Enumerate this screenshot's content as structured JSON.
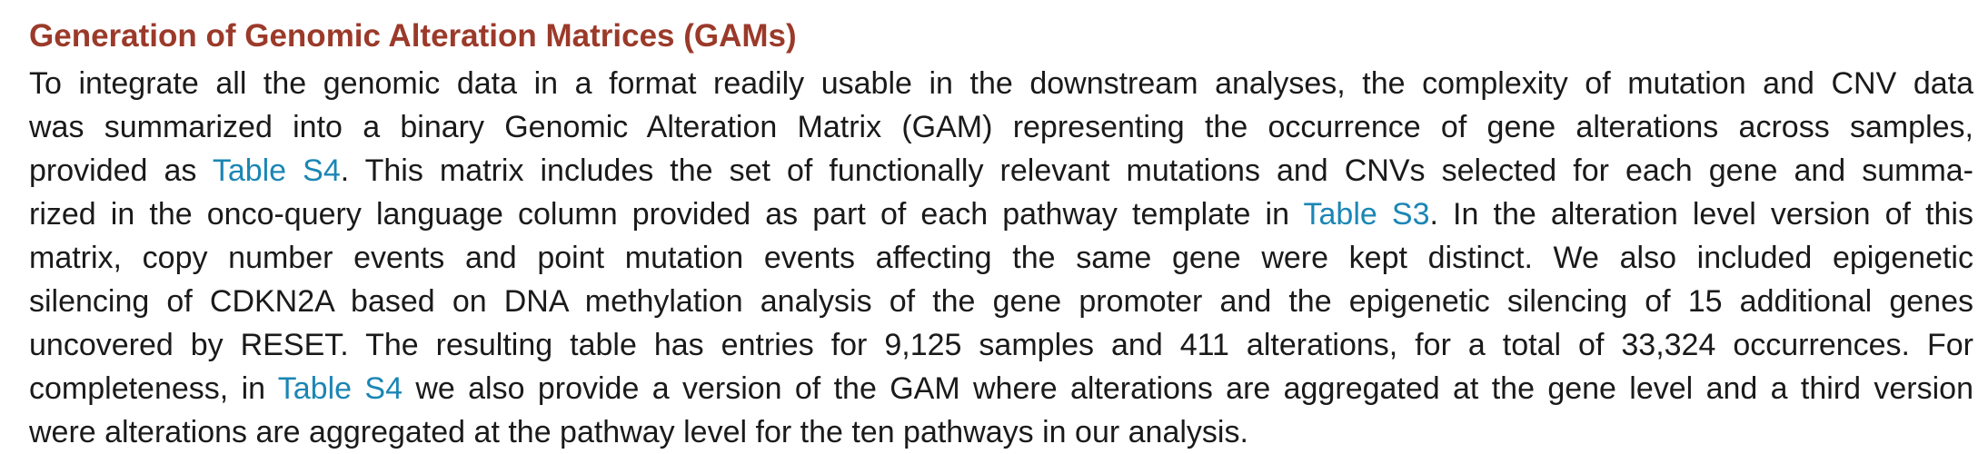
{
  "section": {
    "heading": "Generation of Genomic Alteration Matrices (GAMs)",
    "lines": [
      {
        "segments": [
          "To integrate all the genomic data in a format readily usable in the downstream analyses, the complexity of mutation and CNV data"
        ]
      },
      {
        "segments": [
          "was summarized into a binary Genomic Alteration Matrix (GAM) representing the occurrence of gene alterations across samples,"
        ]
      },
      {
        "segments": [
          "provided as ",
          "Table S4",
          ". This matrix includes the set of functionally relevant mutations and CNVs selected for each gene and summa-"
        ]
      },
      {
        "segments": [
          "rized in the onco-query language column provided as part of each pathway template in ",
          "Table S3",
          ". In the alteration level version of this"
        ]
      },
      {
        "segments": [
          "matrix, copy number events and point mutation events affecting the same gene were kept distinct. We also included epigenetic"
        ]
      },
      {
        "segments": [
          "silencing of CDKN2A based on DNA methylation analysis of the gene promoter and the epigenetic silencing of 15 additional genes"
        ]
      },
      {
        "segments": [
          "uncovered by RESET. The resulting table has entries for 9,125 samples and 411 alterations, for a total of 33,324 occurrences. For"
        ]
      },
      {
        "segments": [
          "completeness, in ",
          "Table S4",
          " we also provide a version of the GAM where alterations are aggregated at the gene level and a third version"
        ]
      },
      {
        "segments": [
          "were alterations are aggregated at the pathway level for the ten pathways in our analysis."
        ]
      }
    ]
  },
  "colors": {
    "heading": "#9b3a2a",
    "body_text": "#1a1a1a",
    "link": "#1b86b5"
  }
}
